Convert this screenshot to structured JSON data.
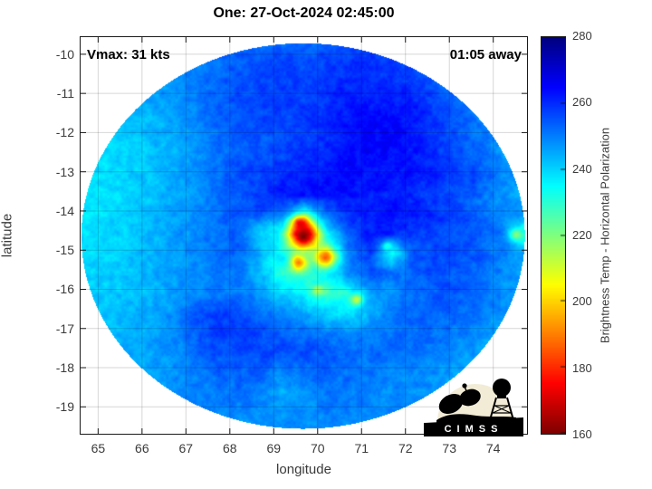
{
  "annotations": {
    "vmax": "Vmax: 31 kts",
    "eta": "01:05 away"
  },
  "logo": {
    "text": "CIMSS",
    "circle_color": "#f2ecd6",
    "silhouette_color": "#000000",
    "text_color": "#ffffff"
  },
  "chart_data": {
    "type": "heatmap",
    "title": "One: 27-Oct-2024 02:45:00",
    "xlabel": "longitude",
    "ylabel": "latitude",
    "xlim": [
      64.58,
      74.79
    ],
    "ylim": [
      -19.71,
      -9.54
    ],
    "x_ticks": [
      65,
      66,
      67,
      68,
      69,
      70,
      71,
      72,
      73,
      74
    ],
    "y_ticks": [
      -10,
      -11,
      -12,
      -13,
      -14,
      -15,
      -16,
      -17,
      -18,
      -19
    ],
    "grid_on": true,
    "clim": [
      160,
      280
    ],
    "colorbar": {
      "label": "Brightness Temp - Horizontal Polarization",
      "ticks": [
        280,
        260,
        240,
        220,
        200,
        180,
        160
      ],
      "stops": [
        {
          "t": 280,
          "color": "#000080"
        },
        {
          "t": 265,
          "color": "#0000ff"
        },
        {
          "t": 235,
          "color": "#00ffff"
        },
        {
          "t": 205,
          "color": "#ffff00"
        },
        {
          "t": 175,
          "color": "#ff0000"
        },
        {
          "t": 160,
          "color": "#800000"
        }
      ]
    },
    "disk": {
      "center": [
        69.67,
        -14.64
      ],
      "rx": 5.05,
      "ry": 4.92
    },
    "grid": {
      "lon_start": 64.7,
      "lon_step": 0.5,
      "lat_start": -9.6,
      "lat_step": -0.5,
      "units": "K",
      "values": [
        [
          250,
          250,
          250,
          250,
          250,
          250,
          252,
          252,
          251,
          251,
          252,
          253,
          254,
          254,
          253,
          251,
          250,
          250,
          250,
          250,
          250
        ],
        [
          248,
          248,
          248,
          248,
          248,
          250,
          252,
          254,
          255,
          256,
          256,
          257,
          258,
          258,
          257,
          255,
          252,
          250,
          248,
          248,
          248
        ],
        [
          246,
          246,
          246,
          247,
          248,
          250,
          253,
          255,
          257,
          258,
          258,
          259,
          260,
          260,
          259,
          257,
          254,
          250,
          248,
          246,
          246
        ],
        [
          244,
          244,
          245,
          246,
          247,
          250,
          254,
          256,
          257,
          257,
          258,
          259,
          261,
          262,
          262,
          260,
          257,
          253,
          248,
          246,
          244
        ],
        [
          242,
          242,
          243,
          244,
          246,
          249,
          253,
          255,
          256,
          257,
          258,
          260,
          262,
          264,
          264,
          262,
          258,
          254,
          250,
          246,
          244
        ],
        [
          240,
          240,
          241,
          243,
          245,
          248,
          252,
          254,
          255,
          256,
          258,
          260,
          263,
          265,
          265,
          263,
          259,
          255,
          251,
          247,
          244
        ],
        [
          239,
          239,
          240,
          242,
          244,
          247,
          251,
          254,
          256,
          257,
          259,
          261,
          263,
          265,
          264,
          262,
          259,
          256,
          252,
          248,
          245
        ],
        [
          238,
          239,
          240,
          242,
          245,
          248,
          252,
          256,
          258,
          260,
          262,
          263,
          264,
          264,
          263,
          262,
          260,
          258,
          256,
          250,
          246
        ],
        [
          238,
          238,
          240,
          242,
          245,
          248,
          251,
          254,
          258,
          262,
          264,
          264,
          263,
          262,
          261,
          260,
          258,
          255,
          252,
          248,
          245
        ],
        [
          238,
          239,
          241,
          243,
          246,
          249,
          252,
          255,
          257,
          250,
          230,
          252,
          260,
          262,
          263,
          262,
          260,
          257,
          253,
          249,
          246
        ],
        [
          239,
          240,
          241,
          243,
          246,
          249,
          252,
          254,
          240,
          230,
          205,
          235,
          255,
          262,
          260,
          258,
          257,
          256,
          254,
          250,
          228
        ],
        [
          240,
          240,
          242,
          244,
          246,
          249,
          252,
          253,
          245,
          235,
          225,
          220,
          250,
          258,
          233,
          255,
          257,
          256,
          254,
          250,
          246
        ],
        [
          240,
          241,
          242,
          244,
          246,
          248,
          251,
          252,
          242,
          230,
          230,
          235,
          248,
          255,
          252,
          254,
          256,
          255,
          253,
          249,
          246
        ],
        [
          241,
          241,
          242,
          244,
          246,
          248,
          250,
          251,
          248,
          240,
          235,
          228,
          232,
          245,
          248,
          252,
          254,
          254,
          252,
          248,
          245
        ],
        [
          242,
          242,
          243,
          245,
          248,
          255,
          258,
          256,
          252,
          248,
          245,
          240,
          238,
          244,
          250,
          253,
          254,
          253,
          251,
          248,
          245
        ],
        [
          243,
          243,
          244,
          246,
          249,
          254,
          258,
          258,
          256,
          254,
          252,
          250,
          248,
          250,
          252,
          253,
          252,
          250,
          248,
          246,
          244
        ],
        [
          244,
          244,
          245,
          246,
          248,
          252,
          255,
          256,
          257,
          257,
          256,
          254,
          252,
          252,
          252,
          251,
          250,
          248,
          246,
          245,
          244
        ],
        [
          245,
          245,
          245,
          246,
          248,
          250,
          253,
          254,
          254,
          250,
          252,
          253,
          252,
          251,
          250,
          249,
          248,
          247,
          246,
          245,
          245
        ],
        [
          246,
          246,
          246,
          246,
          248,
          249,
          251,
          252,
          250,
          244,
          248,
          251,
          251,
          250,
          249,
          248,
          247,
          246,
          246,
          246,
          246
        ],
        [
          247,
          247,
          247,
          247,
          248,
          249,
          250,
          250,
          249,
          247,
          248,
          250,
          250,
          250,
          249,
          248,
          248,
          247,
          247,
          247,
          247
        ],
        [
          248,
          248,
          248,
          248,
          248,
          248,
          248,
          248,
          248,
          248,
          248,
          248,
          248,
          248,
          248,
          248,
          248,
          248,
          248,
          248,
          248
        ]
      ]
    },
    "hot_spots": [
      {
        "lon": 69.68,
        "lat": -14.62,
        "temp": 160,
        "r": 0.3
      },
      {
        "lon": 69.62,
        "lat": -14.32,
        "temp": 172,
        "r": 0.18
      },
      {
        "lon": 69.55,
        "lat": -15.32,
        "temp": 190,
        "r": 0.2
      },
      {
        "lon": 70.18,
        "lat": -15.18,
        "temp": 188,
        "r": 0.22
      },
      {
        "lon": 70.02,
        "lat": -16.02,
        "temp": 215,
        "r": 0.14
      },
      {
        "lon": 70.88,
        "lat": -16.28,
        "temp": 212,
        "r": 0.14
      },
      {
        "lon": 71.6,
        "lat": -14.9,
        "temp": 230,
        "r": 0.12
      },
      {
        "lon": 74.52,
        "lat": -14.6,
        "temp": 222,
        "r": 0.14
      },
      {
        "lon": 69.1,
        "lat": -15.25,
        "temp": 237,
        "r": 0.25
      },
      {
        "lon": 68.8,
        "lat": -14.55,
        "temp": 240,
        "r": 0.3
      }
    ]
  }
}
